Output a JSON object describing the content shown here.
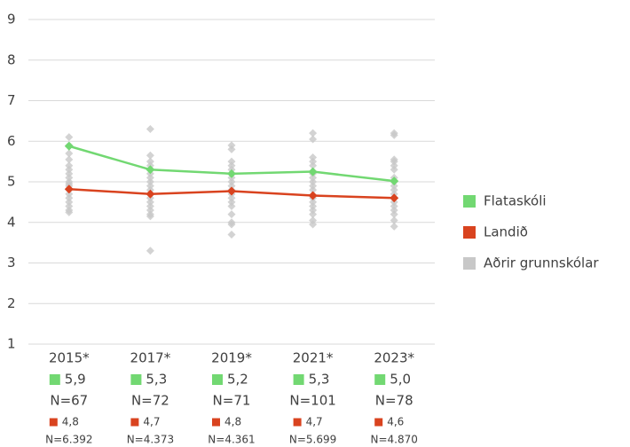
{
  "chart_data": {
    "type": "line",
    "categories": [
      "2015*",
      "2017*",
      "2019*",
      "2021*",
      "2023*"
    ],
    "ylim": [
      1,
      9
    ],
    "yticks": [
      1,
      2,
      3,
      4,
      5,
      6,
      7,
      8,
      9
    ],
    "grid": true,
    "legend": "right",
    "series": [
      {
        "name": "Flataskóli",
        "color": "#72d872",
        "values": [
          5.88,
          5.3,
          5.2,
          5.25,
          5.02
        ],
        "value_labels": [
          "5,9",
          "5,3",
          "5,2",
          "5,3",
          "5,0"
        ],
        "n_labels": [
          "N=67",
          "N=72",
          "N=71",
          "N=101",
          "N=78"
        ]
      },
      {
        "name": "Landið",
        "color": "#d9431f",
        "values": [
          4.82,
          4.7,
          4.77,
          4.66,
          4.6
        ],
        "value_labels": [
          "4,8",
          "4,7",
          "4,8",
          "4,7",
          "4,6"
        ],
        "n_labels": [
          "N=6.392",
          "N=4.373",
          "N=4.361",
          "N=5.699",
          "N=4.870"
        ]
      },
      {
        "name": "Aðrir grunnskólar",
        "color": "#c8c8c8",
        "scatter": true,
        "values": [
          [
            6.1,
            5.9,
            5.7,
            5.55,
            5.4,
            5.3,
            5.2,
            5.1,
            5.0,
            4.95,
            4.9,
            4.8,
            4.7,
            4.6,
            4.5,
            4.4,
            4.3,
            4.25
          ],
          [
            6.3,
            5.65,
            5.5,
            5.4,
            5.2,
            5.1,
            5.0,
            4.9,
            4.8,
            4.7,
            4.6,
            4.5,
            4.4,
            4.3,
            4.2,
            4.15,
            3.3
          ],
          [
            5.9,
            5.8,
            5.5,
            5.4,
            5.3,
            5.1,
            5.0,
            4.9,
            4.8,
            4.7,
            4.6,
            4.5,
            4.4,
            4.2,
            4.0,
            3.95,
            3.7
          ],
          [
            6.2,
            6.05,
            5.6,
            5.5,
            5.4,
            5.2,
            5.1,
            5.0,
            4.9,
            4.8,
            4.6,
            4.5,
            4.4,
            4.3,
            4.2,
            4.05,
            3.95
          ],
          [
            6.2,
            6.15,
            5.55,
            5.5,
            5.4,
            5.3,
            5.1,
            5.0,
            4.9,
            4.8,
            4.7,
            4.5,
            4.4,
            4.3,
            4.2,
            4.05,
            3.9
          ]
        ]
      }
    ]
  }
}
